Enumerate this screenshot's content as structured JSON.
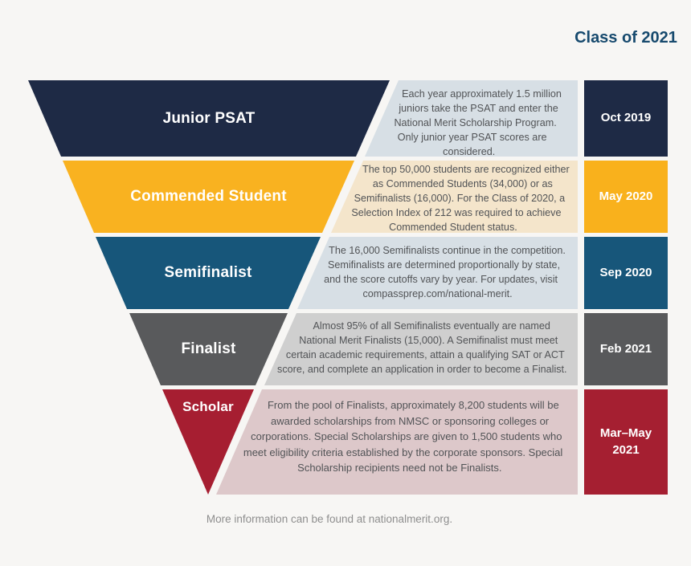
{
  "header": {
    "title": "Class of 2021"
  },
  "funnel": {
    "stages": [
      {
        "label": "Junior PSAT",
        "date": "Oct 2019",
        "description": "Each year approximately 1.5 million juniors take the PSAT and enter the National Merit Scholarship Program. Only junior year PSAT scores are considered.",
        "band_color": "#1e2a45",
        "panel_color": "#d7dfe5",
        "date_color": "#1e2a45"
      },
      {
        "label": "Commended Student",
        "date": "May 2020",
        "description": "The top 50,000 students are recognized either as Commended Students (34,000) or as Semifinalists (16,000). For the Class of 2020, a Selection Index of 212 was required to achieve Commended Student status.",
        "band_color": "#f9b220",
        "panel_color": "#f4e5cb",
        "date_color": "#f9b11c"
      },
      {
        "label": "Semifinalist",
        "date": "Sep 2020",
        "description": "The 16,000 Semifinalists continue in the competition. Semifinalists are determined proportionally by state, and the score cutoffs vary by year. For updates, visit compassprep.com/national-merit.",
        "band_color": "#17567a",
        "panel_color": "#d7dfe5",
        "date_color": "#17567a"
      },
      {
        "label": "Finalist",
        "date": "Feb 2021",
        "description": "Almost 95% of all Semifinalists eventually are named National Merit Finalists (15,000). A Semifinalist must meet certain academic requirements, attain a qualifying SAT or ACT score, and complete an application in order to become a Finalist.",
        "band_color": "#595a5c",
        "panel_color": "#cfcfcf",
        "date_color": "#58595b"
      },
      {
        "label": "Scholar",
        "date": "Mar–May 2021",
        "description": "From the pool of Finalists, approximately 8,200 students will be awarded scholarships from NMSC or sponsoring colleges or corporations. Special Scholarships are given to 1,500 students who meet eligibility criteria established by the corporate sponsors. Special Scholarship recipients need not be Finalists.",
        "band_color": "#a61e31",
        "panel_color": "#ddc8ca",
        "date_color": "#a51f31"
      }
    ]
  },
  "footer": {
    "note": "More information can be found at nationalmerit.org."
  },
  "colors": {
    "background": "#f7f6f4",
    "heading_text": "#174a6e",
    "body_text": "#515356",
    "footer_text": "#8e8e8e",
    "stage_label_text": "#ffffff"
  }
}
